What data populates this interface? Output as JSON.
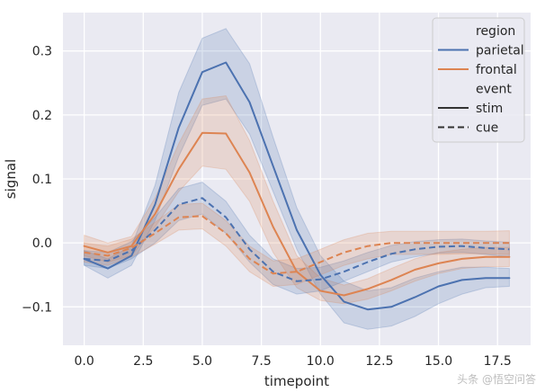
{
  "chart_data": {
    "type": "line",
    "title": "",
    "xlabel": "timepoint",
    "ylabel": "signal",
    "xlim": [
      -0.9,
      18.9
    ],
    "ylim": [
      -0.16,
      0.36
    ],
    "xticks": [
      0.0,
      2.5,
      5.0,
      7.5,
      10.0,
      12.5,
      15.0,
      17.5
    ],
    "xtick_labels": [
      "0.0",
      "2.5",
      "5.0",
      "7.5",
      "10.0",
      "12.5",
      "15.0",
      "17.5"
    ],
    "yticks": [
      -0.1,
      0.0,
      0.1,
      0.2,
      0.3
    ],
    "ytick_labels": [
      "−0.1",
      "0.0",
      "0.1",
      "0.2",
      "0.3"
    ],
    "grid": true,
    "legend_placement": "top-right",
    "legend": {
      "hue_title": "region",
      "style_title": "event",
      "entries": [
        {
          "label": "parietal",
          "kind": "hue",
          "color": "#4c72b0"
        },
        {
          "label": "frontal",
          "kind": "hue",
          "color": "#dd8452"
        },
        {
          "label": "stim",
          "kind": "style",
          "dash": "solid"
        },
        {
          "label": "cue",
          "kind": "style",
          "dash": "dashed"
        }
      ]
    },
    "x": [
      0,
      1,
      2,
      3,
      4,
      5,
      6,
      7,
      8,
      9,
      10,
      11,
      12,
      13,
      14,
      15,
      16,
      17,
      18
    ],
    "series": [
      {
        "name": "parietal",
        "event": "stim",
        "color": "#4c72b0",
        "dash": "solid",
        "values": [
          -0.025,
          -0.04,
          -0.02,
          0.06,
          0.18,
          0.267,
          0.282,
          0.22,
          0.12,
          0.02,
          -0.05,
          -0.092,
          -0.104,
          -0.1,
          -0.085,
          -0.068,
          -0.058,
          -0.055,
          -0.055
        ],
        "ci_low": [
          -0.035,
          -0.055,
          -0.035,
          0.035,
          0.135,
          0.215,
          0.225,
          0.17,
          0.08,
          -0.01,
          -0.08,
          -0.125,
          -0.135,
          -0.13,
          -0.115,
          -0.095,
          -0.08,
          -0.07,
          -0.068
        ],
        "ci_high": [
          -0.012,
          -0.025,
          -0.005,
          0.09,
          0.235,
          0.32,
          0.335,
          0.28,
          0.165,
          0.055,
          -0.02,
          -0.06,
          -0.075,
          -0.07,
          -0.055,
          -0.045,
          -0.038,
          -0.038,
          -0.04
        ]
      },
      {
        "name": "frontal",
        "event": "stim",
        "color": "#dd8452",
        "dash": "solid",
        "values": [
          -0.005,
          -0.015,
          -0.005,
          0.045,
          0.115,
          0.172,
          0.171,
          0.11,
          0.025,
          -0.045,
          -0.075,
          -0.082,
          -0.072,
          -0.058,
          -0.042,
          -0.032,
          -0.025,
          -0.022,
          -0.022
        ],
        "ci_low": [
          -0.02,
          -0.03,
          -0.02,
          0.025,
          0.08,
          0.12,
          0.115,
          0.065,
          -0.015,
          -0.07,
          -0.09,
          -0.095,
          -0.088,
          -0.075,
          -0.06,
          -0.048,
          -0.04,
          -0.037,
          -0.037
        ],
        "ci_high": [
          0.012,
          0.0,
          0.01,
          0.07,
          0.155,
          0.225,
          0.23,
          0.16,
          0.065,
          -0.02,
          -0.055,
          -0.066,
          -0.056,
          -0.04,
          -0.025,
          -0.015,
          -0.01,
          -0.007,
          -0.007
        ]
      },
      {
        "name": "parietal",
        "event": "cue",
        "color": "#4c72b0",
        "dash": "dashed",
        "values": [
          -0.025,
          -0.028,
          -0.012,
          0.02,
          0.06,
          0.07,
          0.04,
          -0.01,
          -0.045,
          -0.06,
          -0.057,
          -0.045,
          -0.03,
          -0.017,
          -0.01,
          -0.006,
          -0.005,
          -0.008,
          -0.01
        ],
        "ci_low": [
          -0.035,
          -0.04,
          -0.025,
          0.0,
          0.035,
          0.045,
          0.015,
          -0.03,
          -0.065,
          -0.08,
          -0.075,
          -0.06,
          -0.045,
          -0.03,
          -0.022,
          -0.016,
          -0.015,
          -0.018,
          -0.022
        ],
        "ci_high": [
          -0.012,
          -0.015,
          0.002,
          0.04,
          0.085,
          0.095,
          0.065,
          0.012,
          -0.025,
          -0.04,
          -0.038,
          -0.028,
          -0.015,
          -0.004,
          0.002,
          0.005,
          0.006,
          0.003,
          0.001
        ]
      },
      {
        "name": "frontal",
        "event": "cue",
        "color": "#dd8452",
        "dash": "dashed",
        "values": [
          -0.015,
          -0.02,
          -0.008,
          0.015,
          0.04,
          0.042,
          0.015,
          -0.025,
          -0.048,
          -0.045,
          -0.03,
          -0.015,
          -0.005,
          0.0,
          0.0,
          0.0,
          0.0,
          0.0,
          0.0
        ],
        "ci_low": [
          -0.03,
          -0.035,
          -0.022,
          -0.002,
          0.02,
          0.022,
          -0.005,
          -0.045,
          -0.068,
          -0.065,
          -0.05,
          -0.035,
          -0.025,
          -0.018,
          -0.018,
          -0.018,
          -0.017,
          -0.017,
          -0.018
        ],
        "ci_high": [
          0.0,
          -0.005,
          0.006,
          0.032,
          0.06,
          0.062,
          0.035,
          -0.005,
          -0.028,
          -0.025,
          -0.01,
          0.005,
          0.015,
          0.018,
          0.018,
          0.018,
          0.018,
          0.018,
          0.019
        ]
      }
    ]
  },
  "watermark": "头条 @悟空问答"
}
